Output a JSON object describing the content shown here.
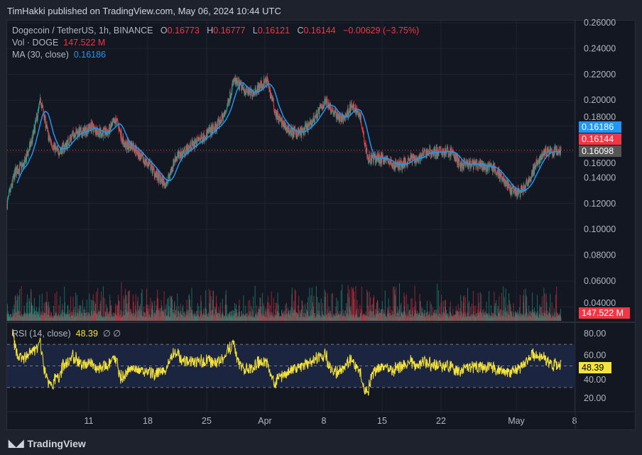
{
  "header": {
    "published": "TimHakki published on TradingView.com, May 06, 2024 10:44 UTC"
  },
  "legend": {
    "symbol": "Dogecoin / TetherUS, 1h, BINANCE",
    "o_label": "O",
    "o": "0.16773",
    "h_label": "H",
    "h": "0.16777",
    "l_label": "L",
    "l": "0.16121",
    "c_label": "C",
    "c": "0.16144",
    "change": "−0.00629 (−3.75%)",
    "vol_label": "Vol · DOGE",
    "vol": "147.522 M",
    "ma_label": "MA (30, close)",
    "ma": "0.16186",
    "rsi_label": "RSI (14, close)",
    "rsi": "48.39",
    "rsi_extra": "∅ ∅"
  },
  "tags": {
    "ma": "0.16186",
    "close": "0.16144",
    "prev": "0.16098",
    "vol": "147.522 M",
    "rsi": "48.39"
  },
  "colors": {
    "up": "#22ab94",
    "down": "#f23645",
    "ma": "#2196f3",
    "rsi": "#f5e33b",
    "bg": "#131722"
  },
  "footer": {
    "brand": "TradingView"
  },
  "chart_data": {
    "type": "candlestick",
    "price_axis": [
      "0.26000",
      "0.24000",
      "0.22000",
      "0.20000",
      "0.18000",
      "0.16000",
      "0.14000",
      "0.12000",
      "0.10000",
      "0.08000",
      "0.06000",
      "0.04000"
    ],
    "ylim": [
      0.04,
      0.26
    ],
    "rsi_axis": [
      "80.00",
      "60.00",
      "40.00",
      "20.00"
    ],
    "rsi_bands": [
      70,
      30
    ],
    "time_axis": [
      "11",
      "18",
      "25",
      "Apr",
      "8",
      "15",
      "22",
      "May",
      "8"
    ],
    "daily_close_approx": {
      "start": "2024-03-01",
      "end": "2024-05-06",
      "values": [
        0.12,
        0.145,
        0.15,
        0.17,
        0.2,
        0.17,
        0.16,
        0.165,
        0.175,
        0.175,
        0.18,
        0.175,
        0.175,
        0.185,
        0.165,
        0.165,
        0.155,
        0.15,
        0.14,
        0.135,
        0.155,
        0.16,
        0.165,
        0.17,
        0.175,
        0.18,
        0.19,
        0.215,
        0.21,
        0.205,
        0.21,
        0.215,
        0.19,
        0.18,
        0.175,
        0.175,
        0.18,
        0.19,
        0.2,
        0.19,
        0.185,
        0.195,
        0.19,
        0.155,
        0.155,
        0.155,
        0.15,
        0.15,
        0.155,
        0.155,
        0.16,
        0.16,
        0.16,
        0.16,
        0.15,
        0.15,
        0.15,
        0.148,
        0.148,
        0.14,
        0.13,
        0.128,
        0.135,
        0.15,
        0.16,
        0.16,
        0.161
      ]
    }
  }
}
